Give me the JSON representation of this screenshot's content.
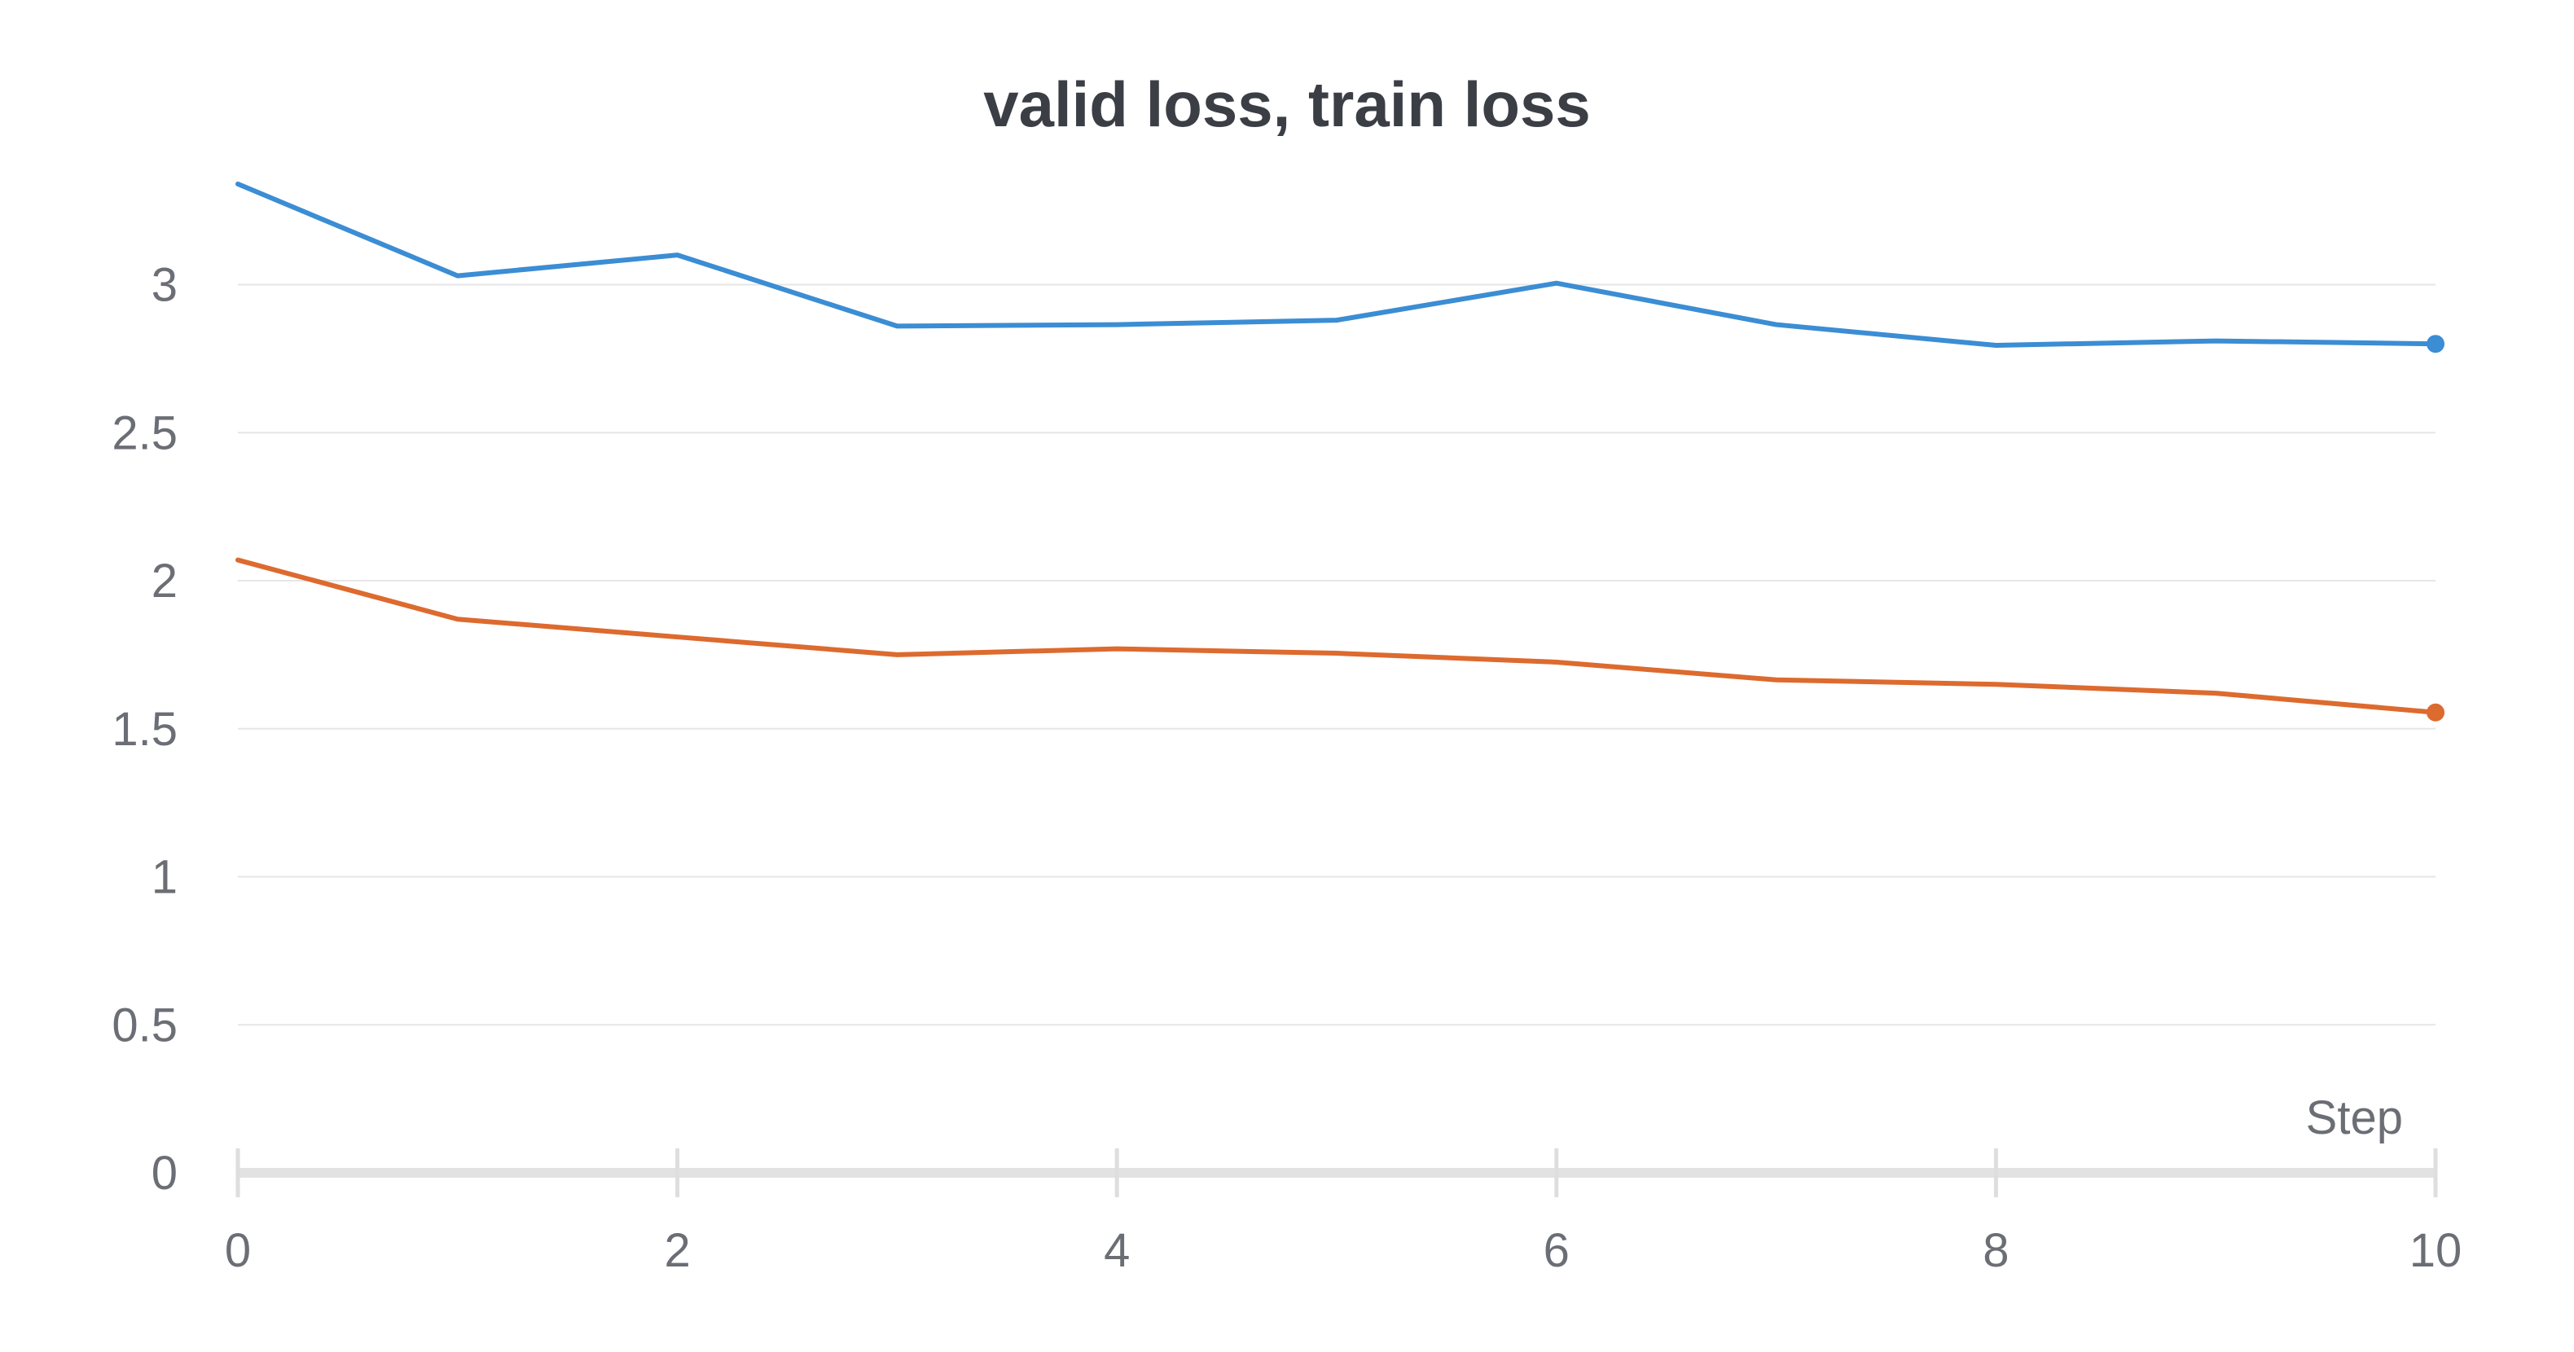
{
  "chart_data": {
    "type": "line",
    "title": "valid loss, train loss",
    "xlabel": "Step",
    "ylabel": "",
    "xlim": [
      0,
      10
    ],
    "ylim": [
      0,
      3.4
    ],
    "x_ticks": [
      0,
      2,
      4,
      6,
      8,
      10
    ],
    "y_ticks": [
      0,
      0.5,
      1,
      1.5,
      2,
      2.5,
      3
    ],
    "x_tick_labels": [
      "0",
      "2",
      "4",
      "6",
      "8",
      "10"
    ],
    "y_tick_labels": [
      "0",
      "0.5",
      "1",
      "1.5",
      "2",
      "2.5",
      "3"
    ],
    "grid": true,
    "x": [
      0,
      1,
      2,
      3,
      4,
      5,
      6,
      7,
      8,
      9,
      10
    ],
    "series": [
      {
        "color": "#3b8dd4",
        "values": [
          3.34,
          3.03,
          3.1,
          2.86,
          2.865,
          2.88,
          3.005,
          2.865,
          2.795,
          2.81,
          2.8
        ]
      },
      {
        "color": "#dd6a2e",
        "values": [
          2.07,
          1.87,
          1.81,
          1.75,
          1.77,
          1.755,
          1.725,
          1.665,
          1.65,
          1.62,
          1.555
        ]
      }
    ]
  }
}
